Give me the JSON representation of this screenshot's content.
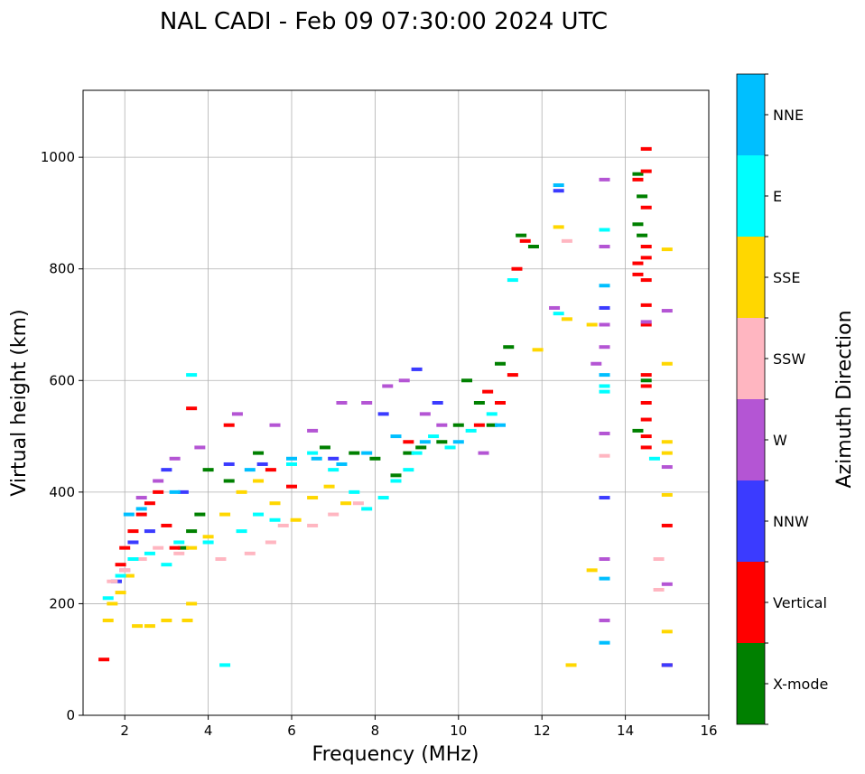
{
  "chart_data": {
    "type": "scatter",
    "title": "NAL CADI - Feb 09 07:30:00 2024 UTC",
    "xlabel": "Frequency (MHz)",
    "ylabel": "Virtual height (km)",
    "xlim": [
      1,
      16
    ],
    "ylim": [
      0,
      1120
    ],
    "xticks": [
      2,
      4,
      6,
      8,
      10,
      12,
      14,
      16
    ],
    "yticks": [
      0,
      200,
      400,
      600,
      800,
      1000
    ],
    "grid": true,
    "colorbar": {
      "title": "Azimuth Direction",
      "categories": [
        {
          "name": "X-mode",
          "color": "#008000"
        },
        {
          "name": "Vertical",
          "color": "#ff0000"
        },
        {
          "name": "NNW",
          "color": "#3b3bff"
        },
        {
          "name": "W",
          "color": "#b455d4"
        },
        {
          "name": "SSW",
          "color": "#ffb6c1"
        },
        {
          "name": "SSE",
          "color": "#ffd700"
        },
        {
          "name": "E",
          "color": "#00ffff"
        },
        {
          "name": "NNE",
          "color": "#00bfff"
        }
      ]
    },
    "series": [
      {
        "name": "X-mode",
        "points": [
          [
            3.4,
            300
          ],
          [
            3.6,
            330
          ],
          [
            3.8,
            360
          ],
          [
            4.0,
            440
          ],
          [
            4.5,
            420
          ],
          [
            5.2,
            470
          ],
          [
            6.8,
            480
          ],
          [
            7.5,
            470
          ],
          [
            8.0,
            460
          ],
          [
            8.5,
            430
          ],
          [
            8.8,
            470
          ],
          [
            9.1,
            480
          ],
          [
            9.6,
            490
          ],
          [
            10.0,
            520
          ],
          [
            10.2,
            600
          ],
          [
            10.5,
            560
          ],
          [
            10.8,
            520
          ],
          [
            11.0,
            630
          ],
          [
            11.2,
            660
          ],
          [
            11.5,
            860
          ],
          [
            11.8,
            840
          ],
          [
            14.3,
            970
          ],
          [
            14.3,
            880
          ],
          [
            14.3,
            510
          ],
          [
            14.5,
            600
          ],
          [
            14.4,
            860
          ],
          [
            14.4,
            930
          ]
        ]
      },
      {
        "name": "Vertical",
        "points": [
          [
            1.5,
            100
          ],
          [
            1.9,
            270
          ],
          [
            2.0,
            300
          ],
          [
            2.2,
            330
          ],
          [
            2.4,
            360
          ],
          [
            2.6,
            380
          ],
          [
            2.8,
            400
          ],
          [
            3.0,
            340
          ],
          [
            3.2,
            300
          ],
          [
            3.6,
            550
          ],
          [
            4.5,
            520
          ],
          [
            5.5,
            440
          ],
          [
            6.0,
            410
          ],
          [
            8.8,
            490
          ],
          [
            10.5,
            520
          ],
          [
            10.7,
            580
          ],
          [
            11.0,
            560
          ],
          [
            11.3,
            610
          ],
          [
            11.4,
            800
          ],
          [
            11.6,
            850
          ],
          [
            14.3,
            960
          ],
          [
            14.3,
            810
          ],
          [
            14.3,
            790
          ],
          [
            14.5,
            1015
          ],
          [
            14.5,
            975
          ],
          [
            14.5,
            910
          ],
          [
            14.5,
            840
          ],
          [
            14.5,
            820
          ],
          [
            14.5,
            780
          ],
          [
            14.5,
            735
          ],
          [
            14.5,
            700
          ],
          [
            14.5,
            610
          ],
          [
            14.5,
            590
          ],
          [
            14.5,
            560
          ],
          [
            14.5,
            530
          ],
          [
            14.5,
            500
          ],
          [
            14.5,
            480
          ],
          [
            15.0,
            340
          ],
          [
            15.0,
            90
          ]
        ]
      },
      {
        "name": "NNW",
        "points": [
          [
            1.8,
            240
          ],
          [
            2.2,
            310
          ],
          [
            2.6,
            330
          ],
          [
            3.0,
            440
          ],
          [
            3.4,
            400
          ],
          [
            4.5,
            450
          ],
          [
            5.3,
            450
          ],
          [
            7.0,
            460
          ],
          [
            8.2,
            540
          ],
          [
            9.0,
            620
          ],
          [
            9.5,
            560
          ],
          [
            12.4,
            940
          ],
          [
            13.5,
            730
          ],
          [
            13.5,
            390
          ],
          [
            15.0,
            90
          ]
        ]
      },
      {
        "name": "W",
        "points": [
          [
            2.0,
            260
          ],
          [
            2.4,
            390
          ],
          [
            2.8,
            420
          ],
          [
            3.2,
            460
          ],
          [
            3.8,
            480
          ],
          [
            4.7,
            540
          ],
          [
            5.6,
            520
          ],
          [
            6.5,
            510
          ],
          [
            7.2,
            560
          ],
          [
            7.8,
            560
          ],
          [
            8.3,
            590
          ],
          [
            8.7,
            600
          ],
          [
            9.2,
            540
          ],
          [
            9.6,
            520
          ],
          [
            10.6,
            470
          ],
          [
            12.3,
            730
          ],
          [
            13.3,
            630
          ],
          [
            13.5,
            960
          ],
          [
            13.5,
            840
          ],
          [
            13.5,
            700
          ],
          [
            13.5,
            660
          ],
          [
            13.5,
            505
          ],
          [
            13.5,
            280
          ],
          [
            13.5,
            170
          ],
          [
            14.5,
            705
          ],
          [
            15.0,
            725
          ],
          [
            15.0,
            445
          ],
          [
            15.0,
            235
          ]
        ]
      },
      {
        "name": "SSW",
        "points": [
          [
            1.7,
            240
          ],
          [
            2.0,
            260
          ],
          [
            2.4,
            280
          ],
          [
            2.8,
            300
          ],
          [
            3.3,
            290
          ],
          [
            4.3,
            280
          ],
          [
            5.0,
            290
          ],
          [
            5.5,
            310
          ],
          [
            5.8,
            340
          ],
          [
            6.5,
            340
          ],
          [
            7.0,
            360
          ],
          [
            7.6,
            380
          ],
          [
            12.6,
            850
          ],
          [
            13.5,
            465
          ],
          [
            14.8,
            280
          ],
          [
            14.8,
            225
          ]
        ]
      },
      {
        "name": "SSE",
        "points": [
          [
            1.6,
            170
          ],
          [
            1.7,
            200
          ],
          [
            1.9,
            220
          ],
          [
            2.1,
            250
          ],
          [
            2.3,
            160
          ],
          [
            2.6,
            160
          ],
          [
            3.0,
            170
          ],
          [
            3.5,
            170
          ],
          [
            3.6,
            200
          ],
          [
            3.6,
            300
          ],
          [
            4.0,
            320
          ],
          [
            4.4,
            360
          ],
          [
            4.8,
            400
          ],
          [
            5.2,
            420
          ],
          [
            5.6,
            380
          ],
          [
            6.1,
            350
          ],
          [
            6.5,
            390
          ],
          [
            6.9,
            410
          ],
          [
            7.3,
            380
          ],
          [
            11.9,
            655
          ],
          [
            12.4,
            875
          ],
          [
            12.6,
            710
          ],
          [
            12.7,
            90
          ],
          [
            13.2,
            700
          ],
          [
            13.2,
            260
          ],
          [
            15.0,
            835
          ],
          [
            15.0,
            630
          ],
          [
            15.0,
            490
          ],
          [
            15.0,
            470
          ],
          [
            15.0,
            395
          ],
          [
            15.0,
            150
          ]
        ]
      },
      {
        "name": "E",
        "points": [
          [
            1.6,
            210
          ],
          [
            1.9,
            250
          ],
          [
            2.2,
            280
          ],
          [
            2.6,
            290
          ],
          [
            3.0,
            270
          ],
          [
            3.3,
            310
          ],
          [
            3.6,
            610
          ],
          [
            4.0,
            310
          ],
          [
            4.4,
            90
          ],
          [
            4.8,
            330
          ],
          [
            5.2,
            360
          ],
          [
            5.6,
            350
          ],
          [
            6.0,
            450
          ],
          [
            6.5,
            470
          ],
          [
            7.0,
            440
          ],
          [
            7.5,
            400
          ],
          [
            7.8,
            370
          ],
          [
            8.2,
            390
          ],
          [
            8.5,
            420
          ],
          [
            8.8,
            440
          ],
          [
            9.0,
            470
          ],
          [
            9.4,
            500
          ],
          [
            9.8,
            480
          ],
          [
            10.3,
            510
          ],
          [
            10.8,
            540
          ],
          [
            11.3,
            780
          ],
          [
            12.4,
            720
          ],
          [
            13.5,
            870
          ],
          [
            13.5,
            590
          ],
          [
            13.5,
            580
          ],
          [
            14.7,
            460
          ]
        ]
      },
      {
        "name": "NNE",
        "points": [
          [
            2.1,
            360
          ],
          [
            2.4,
            370
          ],
          [
            3.2,
            400
          ],
          [
            5.0,
            440
          ],
          [
            6.0,
            460
          ],
          [
            6.6,
            460
          ],
          [
            7.2,
            450
          ],
          [
            7.8,
            470
          ],
          [
            8.5,
            500
          ],
          [
            9.2,
            490
          ],
          [
            10.0,
            490
          ],
          [
            11.0,
            520
          ],
          [
            12.4,
            950
          ],
          [
            13.5,
            770
          ],
          [
            13.5,
            610
          ],
          [
            13.5,
            245
          ],
          [
            13.5,
            130
          ]
        ]
      }
    ]
  }
}
